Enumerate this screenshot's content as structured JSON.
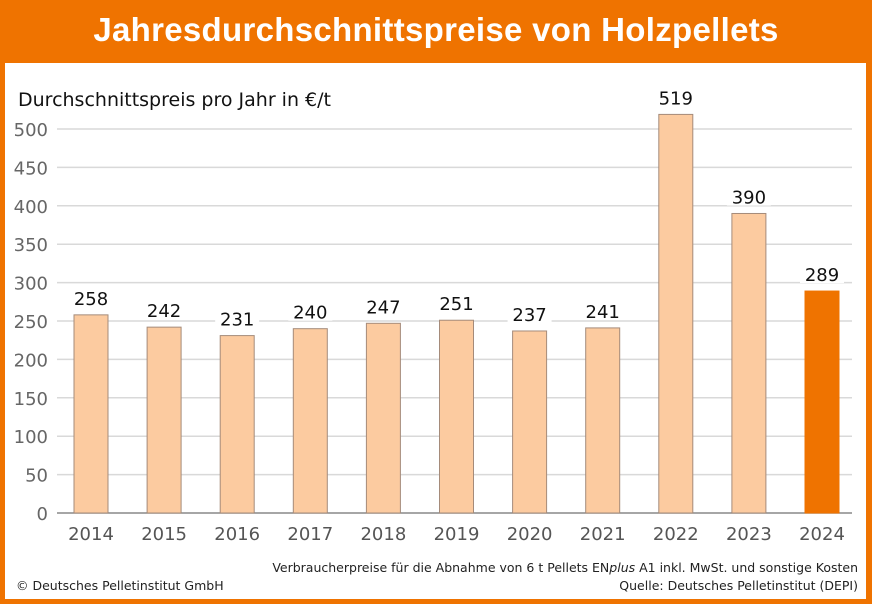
{
  "title": "Jahresdurchschnittspreise von Holzpellets",
  "chart_data": {
    "type": "bar",
    "title": "Jahresdurchschnittspreise von Holzpellets",
    "ylabel": "Durchschnittspreis pro Jahr in €/t",
    "xlabel": "",
    "categories": [
      "2014",
      "2015",
      "2016",
      "2017",
      "2018",
      "2019",
      "2020",
      "2021",
      "2022",
      "2023",
      "2024"
    ],
    "values": [
      258,
      242,
      231,
      240,
      247,
      251,
      237,
      241,
      519,
      390,
      289
    ],
    "ylim": [
      0,
      500
    ],
    "yticks": [
      0,
      50,
      100,
      150,
      200,
      250,
      300,
      350,
      400,
      450,
      500
    ],
    "grid": true,
    "colors": {
      "bar": "#fccba0",
      "bar_stroke": "#a58b7a",
      "highlight": "#ef7300",
      "grid": "#d9d9d9"
    },
    "highlight_category": "2024"
  },
  "footer": {
    "note_prefix": "Verbraucherpreise für die Abnahme von 6 t Pellets EN",
    "note_italic": "plus",
    "note_suffix": " A1 inkl. MwSt. und sonstige Kosten",
    "source": "Quelle: Deutsches Pelletinstitut (DEPI)",
    "copyright": "© Deutsches Pelletinstitut GmbH"
  }
}
